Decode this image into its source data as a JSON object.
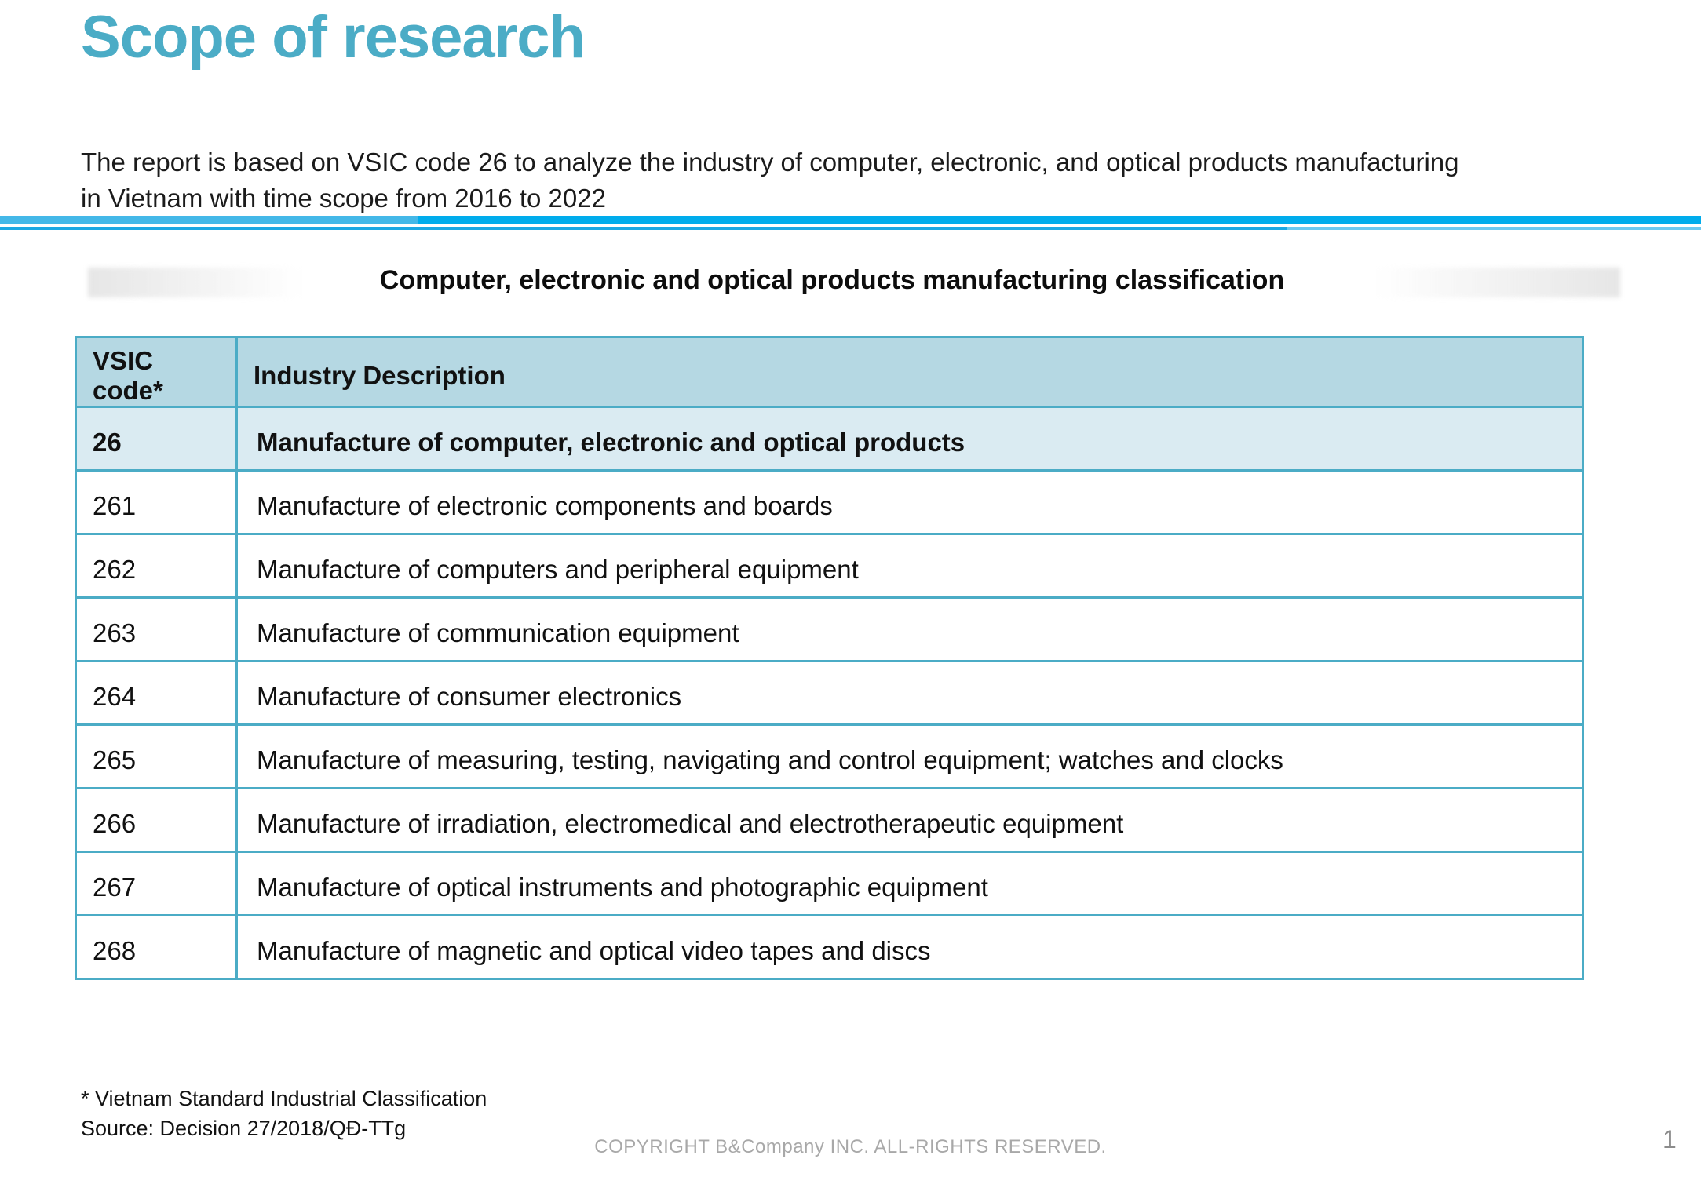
{
  "slide": {
    "title": "Scope of research",
    "intro_line1": "The report is based on VSIC code 26 to analyze the industry of computer, electronic, and optical products manufacturing",
    "intro_line2": "in Vietnam with time scope from 2016 to 2022",
    "table_title": "Computer, electronic and optical products manufacturing classification",
    "footnote_line1": "* Vietnam Standard Industrial Classification",
    "footnote_line2": "Source: Decision 27/2018/QĐ-TTg",
    "copyright": "COPYRIGHT B&Company INC. ALL-RIGHTS RESERVED.",
    "page_number": "1"
  },
  "table": {
    "headers": [
      "VSIC code*",
      "Industry Description"
    ],
    "rows": [
      {
        "code": "26",
        "description": "Manufacture of computer, electronic and optical products",
        "highlighted": true
      },
      {
        "code": "261",
        "description": "Manufacture of electronic components and boards",
        "highlighted": false
      },
      {
        "code": "262",
        "description": "Manufacture of computers and peripheral equipment",
        "highlighted": false
      },
      {
        "code": "263",
        "description": "Manufacture of communication equipment",
        "highlighted": false
      },
      {
        "code": "264",
        "description": "Manufacture of consumer electronics",
        "highlighted": false
      },
      {
        "code": "265",
        "description": "Manufacture of measuring, testing, navigating and control equipment; watches and clocks",
        "highlighted": false
      },
      {
        "code": "266",
        "description": "Manufacture of irradiation, electromedical and electrotherapeutic equipment",
        "highlighted": false
      },
      {
        "code": "267",
        "description": "Manufacture of optical instruments and photographic equipment",
        "highlighted": false
      },
      {
        "code": "268",
        "description": "Manufacture of magnetic and optical video tapes and discs",
        "highlighted": false
      }
    ]
  },
  "colors": {
    "title_teal": "#4BACC6",
    "divider_cyan": "#00ACEC",
    "divider_cyan_light": "#44B8E8",
    "table_border_teal": "#4BACC6",
    "header_row_bg": "#B5D8E3",
    "highlight_row_bg": "#DAEBF2",
    "body_text": "#111111",
    "muted_gray": "#A8A8A8"
  }
}
